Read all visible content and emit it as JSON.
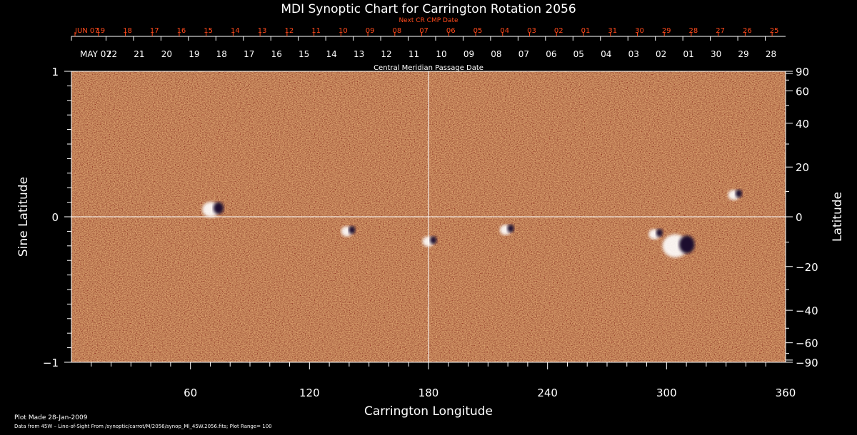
{
  "colors": {
    "background": "#000000",
    "text": "#ffffff",
    "next_cr_text": "#ff4a1c",
    "map_base": "#e8501a",
    "positive_field": "#ffffff",
    "negative_field": "#1a0a2e"
  },
  "chart_data": {
    "type": "heatmap",
    "title": "MDI Synoptic Chart for Carrington Rotation 2056",
    "xlabel": "Carrington Longitude",
    "ylabel_left": "Sine Latitude",
    "ylabel_right": "Latitude",
    "xlim": [
      0,
      360
    ],
    "ylim": [
      -1,
      1
    ],
    "x_ticks": [
      60,
      120,
      180,
      240,
      300,
      360
    ],
    "y_ticks_left": [
      {
        "value": 1,
        "label": "1"
      },
      {
        "value": 0,
        "label": "0"
      },
      {
        "value": -1,
        "label": "−1"
      }
    ],
    "y_ticks_right_deg": [
      90,
      60,
      40,
      20,
      0,
      -20,
      -40,
      -60,
      -90
    ],
    "y_ticks_right_labels": [
      "90",
      "60",
      "40",
      "20",
      "0",
      "−20",
      "−40",
      "−60",
      "−90"
    ],
    "central_meridian_passage_label": "Central Meridian Passage Date",
    "cmp_date_labels": [
      "MAY 07",
      "22",
      "21",
      "20",
      "19",
      "18",
      "17",
      "16",
      "15",
      "14",
      "13",
      "12",
      "11",
      "10",
      "09",
      "08",
      "07",
      "06",
      "05",
      "04",
      "03",
      "02",
      "01",
      "30",
      "29",
      "28"
    ],
    "next_cr_label": "Next CR CMP Date",
    "next_cr_date_labels": [
      "JUN 07",
      "19",
      "18",
      "17",
      "16",
      "15",
      "14",
      "13",
      "12",
      "11",
      "10",
      "09",
      "08",
      "07",
      "06",
      "05",
      "04",
      "03",
      "02",
      "01",
      "31",
      "30",
      "29",
      "28",
      "27",
      "26",
      "25"
    ],
    "crosshair": {
      "longitude": 180,
      "sine_latitude": 0
    },
    "active_regions": [
      {
        "longitude": 72,
        "sine_latitude": 0.05
      },
      {
        "longitude": 140,
        "sine_latitude": -0.1
      },
      {
        "longitude": 181,
        "sine_latitude": -0.17
      },
      {
        "longitude": 220,
        "sine_latitude": -0.09
      },
      {
        "longitude": 295,
        "sine_latitude": -0.12
      },
      {
        "longitude": 307,
        "sine_latitude": -0.2
      },
      {
        "longitude": 335,
        "sine_latitude": 0.15
      }
    ],
    "plot_made": "Plot Made 28-Jan-2009",
    "data_source": "Data from 45W – Line-of-Sight From /synoptic/carrot/M/2056/synop_Ml_45W.2056.fits; Plot Range=  100"
  }
}
